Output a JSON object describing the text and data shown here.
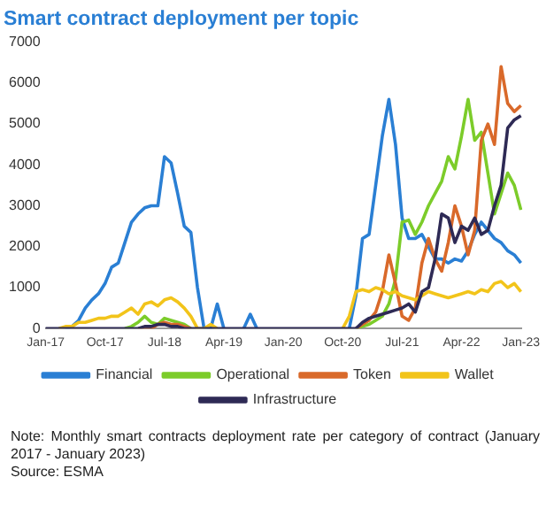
{
  "chart_data": {
    "type": "line",
    "title": "Smart contract deployment per topic",
    "categories": [
      "Jan-17",
      null,
      null,
      null,
      null,
      null,
      null,
      null,
      null,
      "Oct-17",
      null,
      null,
      null,
      null,
      null,
      null,
      null,
      null,
      "Jul-18",
      null,
      null,
      null,
      null,
      null,
      null,
      null,
      null,
      "Apr-19",
      null,
      null,
      null,
      null,
      null,
      null,
      null,
      null,
      "Jan-20",
      null,
      null,
      null,
      null,
      null,
      null,
      null,
      null,
      "Oct-20",
      null,
      null,
      null,
      null,
      null,
      null,
      null,
      null,
      "Jul-21",
      null,
      null,
      null,
      null,
      null,
      null,
      null,
      null,
      "Apr-22",
      null,
      null,
      null,
      null,
      null,
      null,
      null,
      null,
      "Jan-23"
    ],
    "series": [
      {
        "name": "Financial",
        "color": "#2a7fd4",
        "values": [
          null,
          null,
          null,
          0,
          50,
          200,
          500,
          700,
          850,
          1100,
          1500,
          1600,
          2100,
          2600,
          2800,
          2950,
          3000,
          3000,
          4200,
          4050,
          3300,
          2500,
          2350,
          1000,
          0,
          0,
          600,
          0,
          null,
          null,
          0,
          350,
          0,
          null,
          null,
          null,
          null,
          null,
          null,
          null,
          null,
          null,
          null,
          null,
          null,
          null,
          0,
          800,
          2200,
          2300,
          3500,
          4700,
          5600,
          4500,
          2700,
          2200,
          2200,
          2300,
          2000,
          1700,
          1700,
          1600,
          1700,
          1650,
          1900,
          2300,
          2600,
          2400,
          2200,
          2100,
          1900,
          1800,
          1600
        ]
      },
      {
        "name": "Operational",
        "color": "#7ccc2a",
        "values": [
          null,
          null,
          null,
          null,
          null,
          null,
          null,
          null,
          null,
          null,
          null,
          null,
          0,
          50,
          150,
          300,
          150,
          100,
          250,
          200,
          150,
          100,
          0,
          null,
          null,
          null,
          null,
          null,
          null,
          null,
          null,
          null,
          null,
          null,
          null,
          null,
          null,
          null,
          null,
          null,
          null,
          null,
          null,
          null,
          null,
          null,
          null,
          0,
          50,
          100,
          200,
          300,
          600,
          1200,
          2600,
          2650,
          2300,
          2600,
          3000,
          3300,
          3600,
          4200,
          3900,
          4700,
          5600,
          4600,
          4800,
          3800,
          2800,
          3300,
          3800,
          3500,
          2900
        ]
      },
      {
        "name": "Token",
        "color": "#d9692a",
        "values": [
          null,
          null,
          null,
          null,
          null,
          null,
          null,
          null,
          null,
          null,
          null,
          null,
          null,
          null,
          0,
          0,
          0,
          100,
          150,
          100,
          100,
          50,
          0,
          null,
          null,
          null,
          null,
          null,
          null,
          null,
          null,
          null,
          null,
          null,
          null,
          null,
          null,
          null,
          null,
          null,
          null,
          null,
          null,
          null,
          null,
          null,
          null,
          0,
          100,
          200,
          400,
          900,
          1800,
          1100,
          300,
          200,
          500,
          1600,
          2200,
          1700,
          1400,
          2100,
          3000,
          2500,
          1800,
          2400,
          4600,
          5000,
          4500,
          6400,
          5500,
          5300,
          5450
        ]
      },
      {
        "name": "Wallet",
        "color": "#f2c41a",
        "values": [
          null,
          null,
          0,
          50,
          50,
          150,
          150,
          200,
          250,
          250,
          300,
          300,
          400,
          500,
          350,
          600,
          650,
          550,
          700,
          750,
          650,
          500,
          300,
          0,
          0,
          100,
          0,
          null,
          null,
          null,
          null,
          null,
          null,
          null,
          null,
          null,
          null,
          null,
          null,
          null,
          null,
          null,
          null,
          null,
          null,
          0,
          300,
          900,
          950,
          900,
          1000,
          950,
          850,
          900,
          800,
          750,
          700,
          800,
          900,
          850,
          800,
          750,
          800,
          850,
          900,
          850,
          950,
          900,
          1100,
          1150,
          1000,
          1100,
          900
        ]
      },
      {
        "name": "Infrastructure",
        "color": "#2e2a55",
        "values": [
          0,
          0,
          0,
          0,
          0,
          0,
          0,
          0,
          0,
          0,
          0,
          0,
          0,
          0,
          0,
          50,
          50,
          100,
          100,
          50,
          50,
          0,
          0,
          0,
          0,
          0,
          0,
          0,
          0,
          0,
          0,
          0,
          0,
          0,
          0,
          0,
          0,
          0,
          0,
          0,
          0,
          0,
          0,
          0,
          0,
          0,
          0,
          0,
          150,
          250,
          300,
          350,
          400,
          450,
          500,
          600,
          400,
          900,
          1000,
          1700,
          2800,
          2700,
          2100,
          2500,
          2400,
          2700,
          2300,
          2400,
          3000,
          3500,
          4900,
          5100,
          5200
        ]
      }
    ],
    "ylim": [
      0,
      7000
    ],
    "yticks": [
      0,
      1000,
      2000,
      3000,
      4000,
      5000,
      6000,
      7000
    ],
    "grid": false,
    "legend": "bottom",
    "marker": "none",
    "annotations": [
      "Note: Monthly smart contracts deployment rate per category of contract (January 2017 - January 2023)",
      "Source: ESMA"
    ]
  }
}
